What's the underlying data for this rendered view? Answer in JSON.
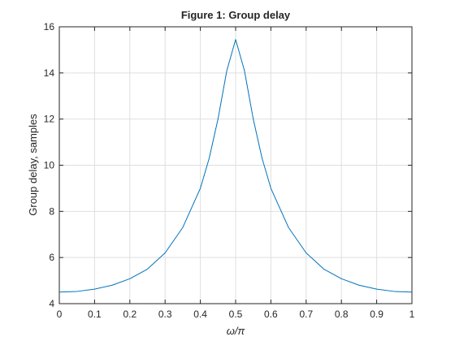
{
  "chart_data": {
    "type": "line",
    "title": "Figure 1: Group delay",
    "xlabel": "ω/π",
    "ylabel": "Group delay, samples",
    "x": [
      0,
      0.05,
      0.1,
      0.15,
      0.2,
      0.25,
      0.3,
      0.35,
      0.4,
      0.425,
      0.45,
      0.475,
      0.5,
      0.525,
      0.55,
      0.575,
      0.6,
      0.65,
      0.7,
      0.75,
      0.8,
      0.85,
      0.9,
      0.95,
      1
    ],
    "values": [
      4.5,
      4.53,
      4.63,
      4.8,
      5.08,
      5.5,
      6.2,
      7.3,
      9.0,
      10.3,
      12.0,
      14.1,
      15.45,
      14.1,
      12.0,
      10.3,
      9.0,
      7.3,
      6.2,
      5.5,
      5.08,
      4.8,
      4.63,
      4.53,
      4.5
    ],
    "color": "#0072bd",
    "xlim": [
      0,
      1
    ],
    "ylim": [
      4,
      16
    ],
    "xticks": [
      0,
      0.1,
      0.2,
      0.3,
      0.4,
      0.5,
      0.6,
      0.7,
      0.8,
      0.9,
      1
    ],
    "yticks": [
      4,
      6,
      8,
      10,
      12,
      14,
      16
    ],
    "grid": true
  }
}
